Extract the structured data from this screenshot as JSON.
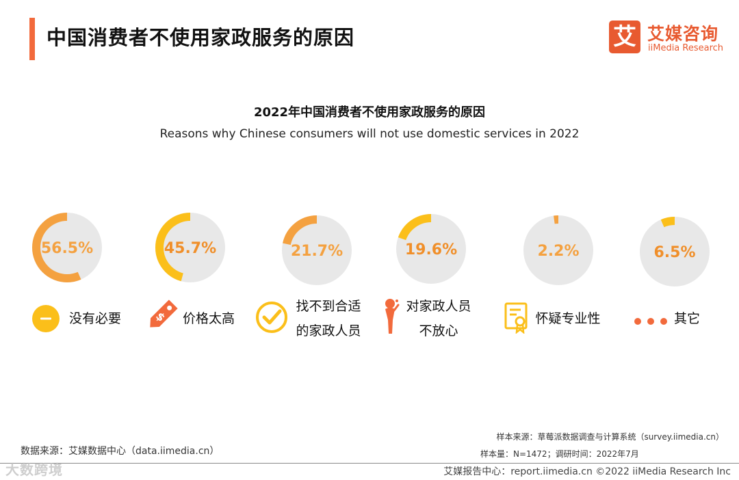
{
  "header": {
    "title": "中国消费者不使用家政服务的原因",
    "logo_mark": "艾",
    "logo_cn": "艾媒咨询",
    "logo_en": "iiMedia Research"
  },
  "chart_data": {
    "type": "donut",
    "title": "2022年中国消费者不使用家政服务的原因",
    "subtitle": "Reasons why Chinese consumers will not use domestic services in 2022",
    "unit": "%",
    "categories": [
      "没有必要",
      "价格太高",
      "找不到合适的家政人员",
      "对家政人员不放心",
      "怀疑专业性",
      "其它"
    ],
    "values": [
      56.5,
      45.7,
      21.7,
      19.6,
      2.2,
      6.5
    ],
    "value_labels": [
      "56.5%",
      "45.7%",
      "21.7%",
      "19.6%",
      "2.2%",
      "6.5%"
    ],
    "category_lines": [
      [
        "没有必要"
      ],
      [
        "价格太高"
      ],
      [
        "找不到合适",
        "的家政人员"
      ],
      [
        "对家政人员",
        "不放心"
      ],
      [
        "怀疑专业性"
      ],
      [
        "其它"
      ]
    ],
    "icons": [
      "minus-circle-icon",
      "price-tag-icon",
      "check-circle-icon",
      "worried-person-icon",
      "certificate-icon",
      "dots-icon"
    ],
    "colors": [
      "#f4a140",
      "#fbbf1a",
      "#f4a140",
      "#fbbf1a",
      "#f4a140",
      "#fbbf1a"
    ],
    "track_color": "#e8e8e8",
    "label_colors": [
      "#f4a140",
      "#f08f2a",
      "#f4a140",
      "#f08f2a",
      "#f4a140",
      "#f08f2a"
    ]
  },
  "footer": {
    "data_source": "数据来源：艾媒数据中心（data.iimedia.cn）",
    "sample_source": "样本来源：草莓派数据调查与计算系统（survey.iimedia.cn）",
    "sample_size": "样本量：N=1472；调研时间：2022年7月",
    "report_center": "艾媒报告中心：report.iimedia.cn  ©2022  iiMedia Research  Inc",
    "watermark": "大数跨境"
  }
}
